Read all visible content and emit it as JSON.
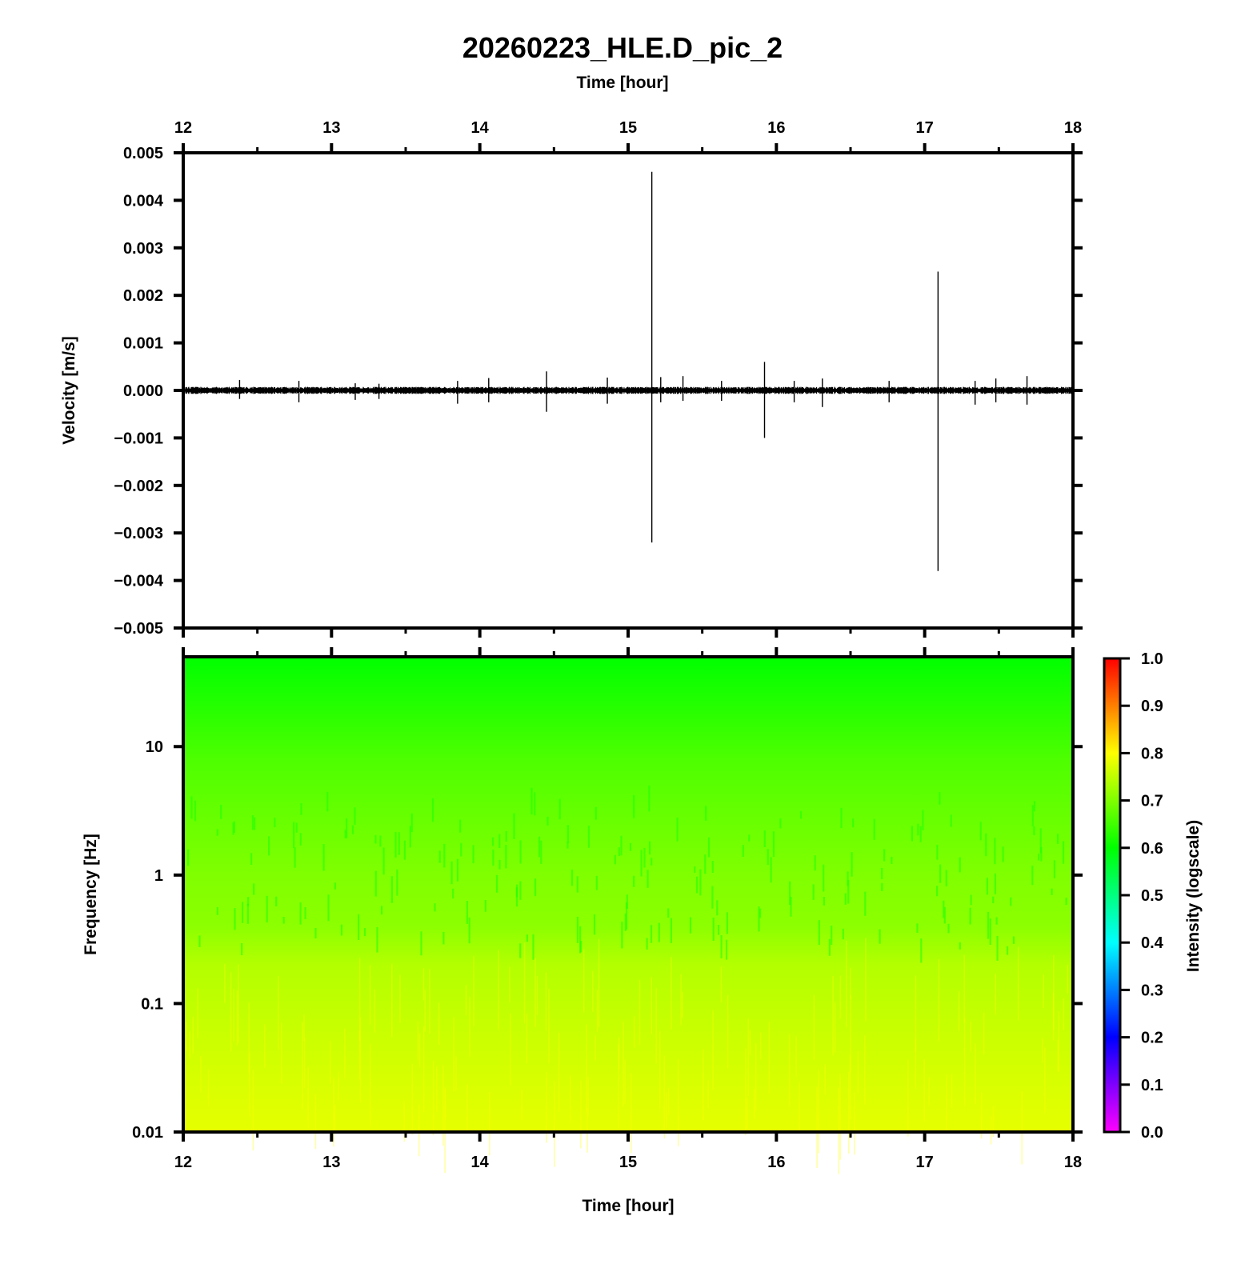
{
  "chart_data": [
    {
      "type": "line",
      "title": "20260223_HLE.D_pic_2",
      "xlabel": "Time [hour]",
      "ylabel": "Velocity [m/s]",
      "xlim": [
        12,
        18
      ],
      "ylim": [
        -0.005,
        0.005
      ],
      "x_ticks": [
        "12",
        "13",
        "14",
        "15",
        "16",
        "17",
        "18"
      ],
      "y_ticks": [
        "0.005",
        "0.004",
        "0.003",
        "0.002",
        "0.001",
        "0.000",
        "−0.001",
        "−0.002",
        "−0.003",
        "−0.004",
        "−0.005"
      ],
      "grid": false,
      "noise_amplitude": 5e-05,
      "series": [
        {
          "spikes": [
            {
              "x": 12.38,
              "y": [
                -0.00018,
                0.00022
              ]
            },
            {
              "x": 12.78,
              "y": [
                -0.00025,
                0.0002
              ]
            },
            {
              "x": 13.16,
              "y": [
                -0.0002,
                0.00015
              ]
            },
            {
              "x": 13.32,
              "y": [
                -0.00018,
                0.00014
              ]
            },
            {
              "x": 13.85,
              "y": [
                -0.00028,
                0.0002
              ]
            },
            {
              "x": 14.06,
              "y": [
                -0.00025,
                0.00026
              ]
            },
            {
              "x": 14.45,
              "y": [
                -0.00045,
                0.0004
              ]
            },
            {
              "x": 14.86,
              "y": [
                -0.00028,
                0.00027
              ]
            },
            {
              "x": 15.16,
              "y": [
                -0.0032,
                0.0046
              ]
            },
            {
              "x": 15.22,
              "y": [
                -0.00025,
                0.00028
              ]
            },
            {
              "x": 15.37,
              "y": [
                -0.00022,
                0.0003
              ]
            },
            {
              "x": 15.63,
              "y": [
                -0.00022,
                0.0002
              ]
            },
            {
              "x": 15.92,
              "y": [
                -0.001,
                0.0006
              ]
            },
            {
              "x": 16.12,
              "y": [
                -0.00025,
                0.0002
              ]
            },
            {
              "x": 16.31,
              "y": [
                -0.00035,
                0.00025
              ]
            },
            {
              "x": 16.76,
              "y": [
                -0.00025,
                0.0002
              ]
            },
            {
              "x": 17.09,
              "y": [
                -0.0038,
                0.0025
              ]
            },
            {
              "x": 17.34,
              "y": [
                -0.0003,
                0.0002
              ]
            },
            {
              "x": 17.48,
              "y": [
                -0.00025,
                0.00025
              ]
            },
            {
              "x": 17.69,
              "y": [
                -0.0003,
                0.0003
              ]
            }
          ]
        }
      ]
    },
    {
      "type": "heatmap",
      "xlabel": "Time [hour]",
      "ylabel": "Frequency [Hz]",
      "xlim": [
        12,
        18
      ],
      "ylim": [
        0.01,
        50
      ],
      "y_scale": "log",
      "x_ticks": [
        "12",
        "13",
        "14",
        "15",
        "16",
        "17",
        "18"
      ],
      "y_ticks": [
        {
          "value": 10,
          "label": "10"
        },
        {
          "value": 1,
          "label": "1"
        },
        {
          "value": 0.1,
          "label": "0.1"
        },
        {
          "value": 0.01,
          "label": "0.01"
        }
      ],
      "intensity_profile": [
        {
          "freq": 50,
          "intensity": 0.6
        },
        {
          "freq": 20,
          "intensity": 0.63
        },
        {
          "freq": 8,
          "intensity": 0.66
        },
        {
          "freq": 3,
          "intensity": 0.68
        },
        {
          "freq": 1,
          "intensity": 0.7
        },
        {
          "freq": 0.4,
          "intensity": 0.71
        },
        {
          "freq": 0.2,
          "intensity": 0.74
        },
        {
          "freq": 0.05,
          "intensity": 0.76
        },
        {
          "freq": 0.01,
          "intensity": 0.78
        }
      ],
      "colorbar": {
        "label": "Intensity (logscale)",
        "range": [
          0,
          1
        ],
        "ticks": [
          "1.0",
          "0.9",
          "0.8",
          "0.7",
          "0.6",
          "0.5",
          "0.4",
          "0.3",
          "0.2",
          "0.1",
          "0.0"
        ],
        "colors": [
          "#ff00ff",
          "#0000ff",
          "#00ffff",
          "#00ff00",
          "#ffff00",
          "#ff0000"
        ]
      }
    }
  ]
}
